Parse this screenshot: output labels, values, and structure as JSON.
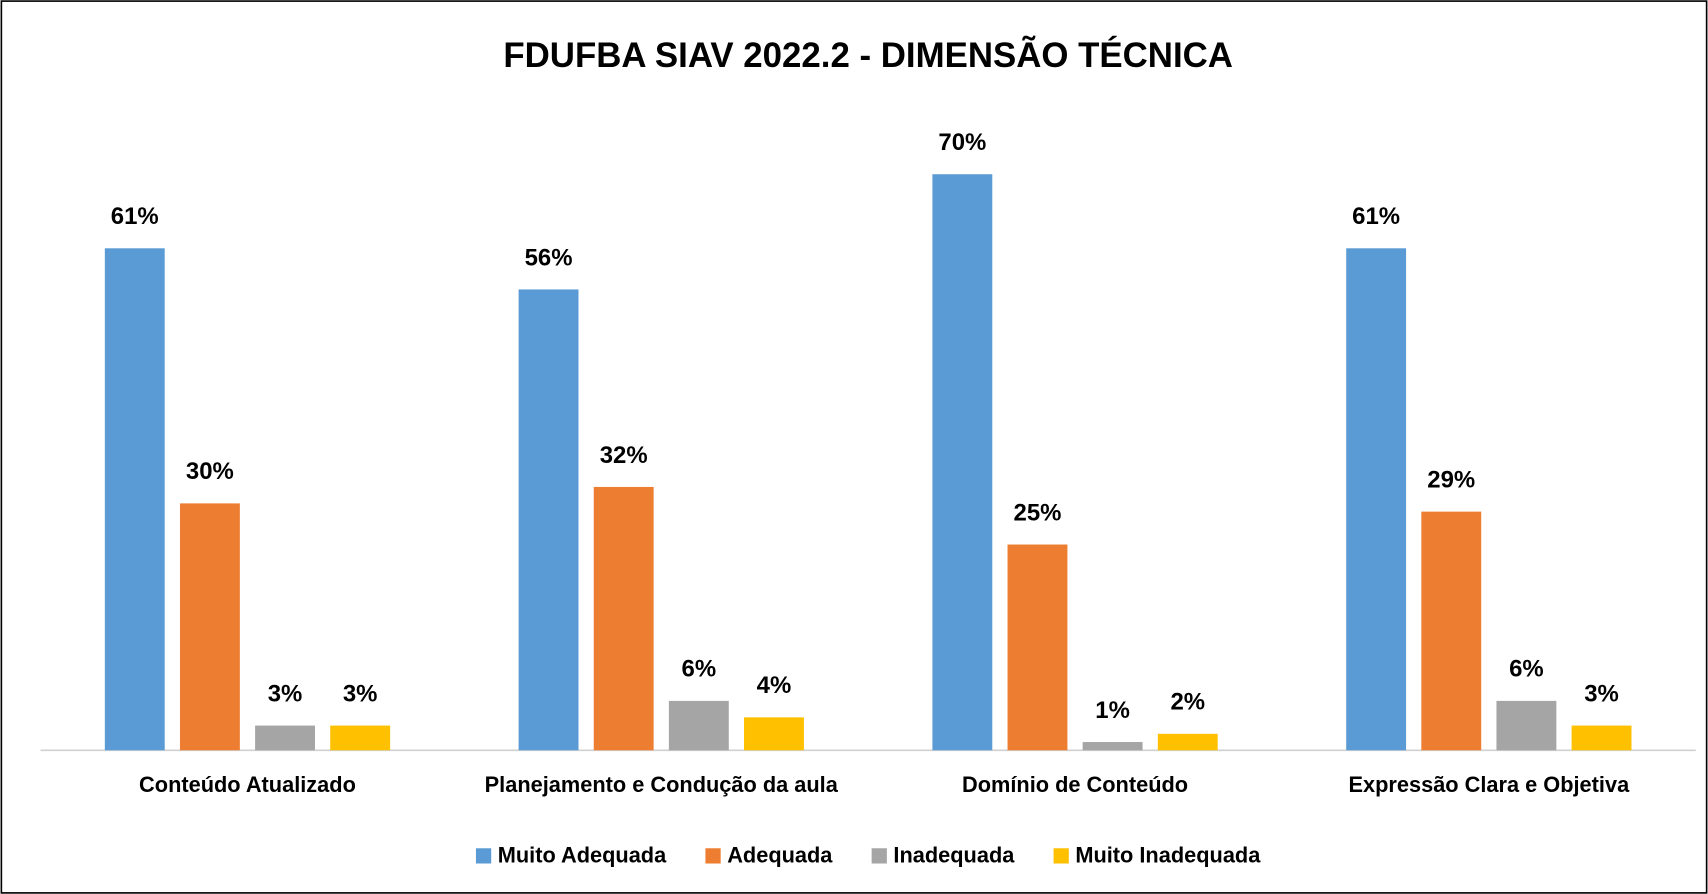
{
  "chart_data": {
    "type": "bar",
    "title": "FDUFBA SIAV 2022.2 - DIMENSÃO TÉCNICA",
    "categories": [
      "Conteúdo Atualizado",
      "Planejamento e Condução da aula",
      "Domínio de Conteúdo",
      "Expressão Clara e Objetiva"
    ],
    "series": [
      {
        "name": "Muito Adequada",
        "color": "#5b9bd5",
        "values": [
          61,
          56,
          70,
          61
        ],
        "value_labels": [
          "61%",
          "56%",
          "70%",
          "61%"
        ]
      },
      {
        "name": "Adequada",
        "color": "#ed7d31",
        "values": [
          30,
          32,
          25,
          29
        ],
        "value_labels": [
          "30%",
          "32%",
          "25%",
          "29%"
        ]
      },
      {
        "name": "Inadequada",
        "color": "#a5a5a5",
        "values": [
          3,
          6,
          1,
          6
        ],
        "value_labels": [
          "3%",
          "6%",
          "1%",
          "6%"
        ]
      },
      {
        "name": "Muito Inadequada",
        "color": "#ffc000",
        "values": [
          3,
          4,
          2,
          3
        ],
        "value_labels": [
          "3%",
          "4%",
          "2%",
          "3%"
        ]
      }
    ],
    "legend": "bottom"
  }
}
